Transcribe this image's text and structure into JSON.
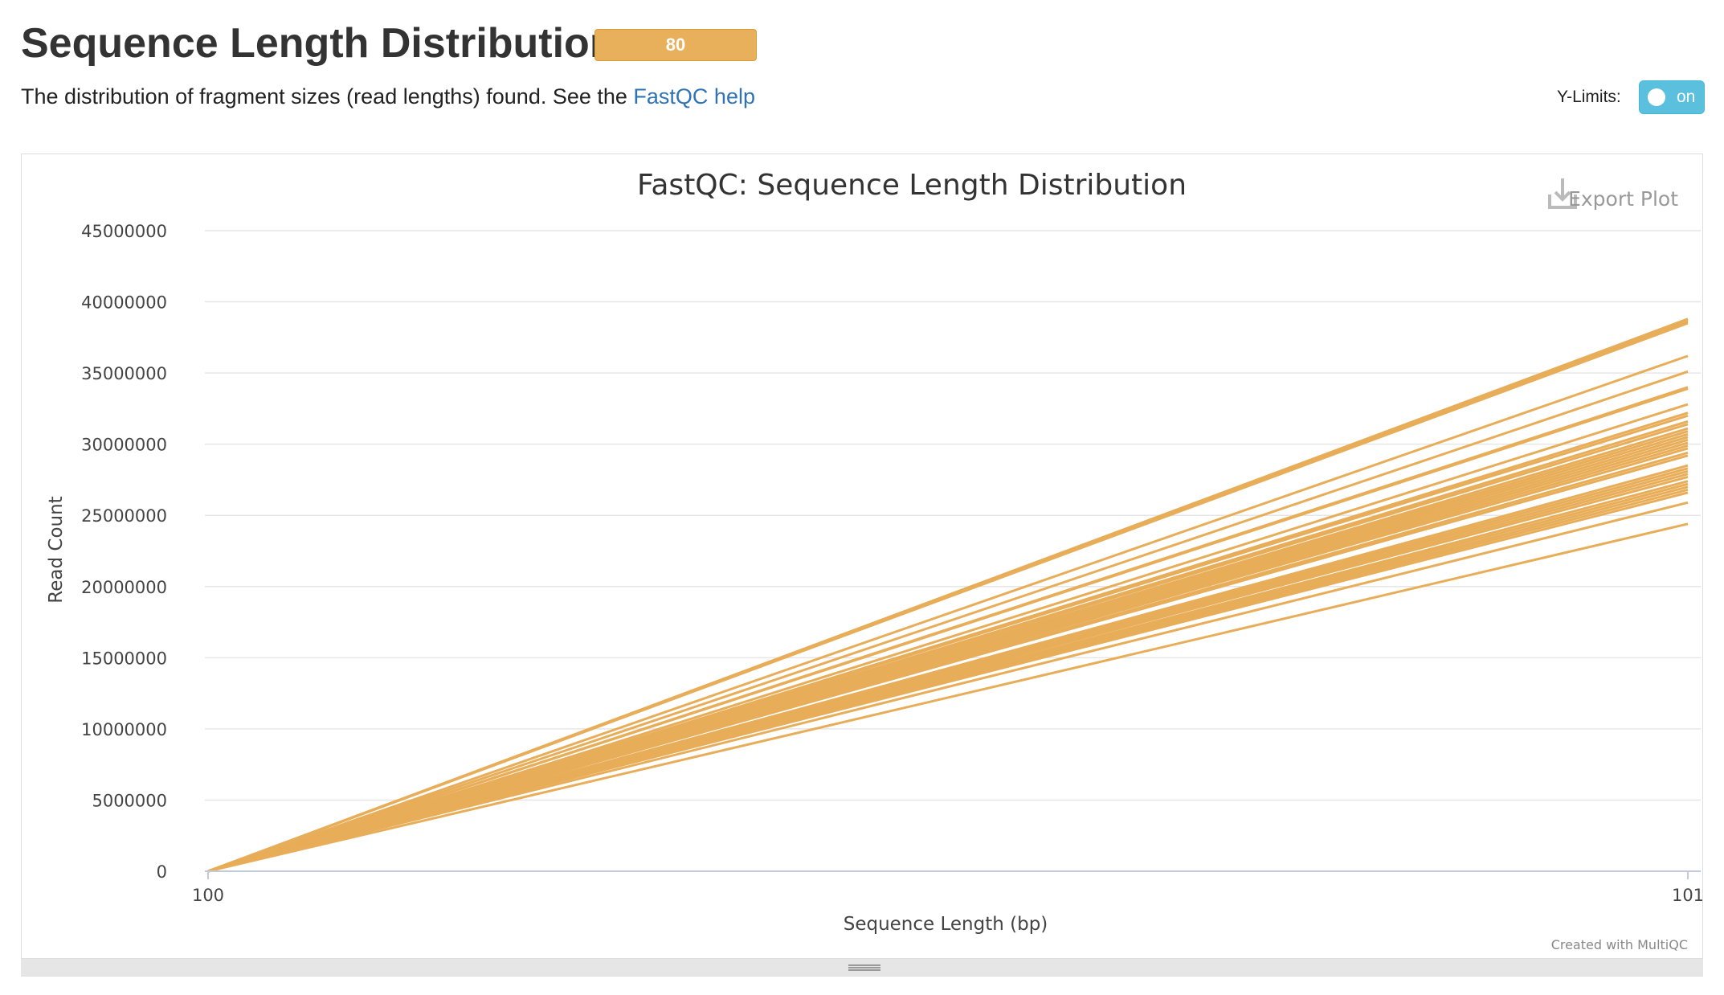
{
  "section": {
    "title": "Sequence Length Distribution",
    "badge": "80",
    "description_prefix": "The distribution of fragment sizes (read lengths) found. See the ",
    "description_link": "FastQC help"
  },
  "controls": {
    "ylimits_label": "Y-Limits:",
    "ylimits_toggle": "on"
  },
  "plot": {
    "export_label": "Export Plot",
    "credits": "Created with MultiQC"
  },
  "colors": {
    "series": "#e8ad58",
    "badge": "#e8b05b",
    "toggle": "#5bc0de",
    "link": "#2f73b5"
  },
  "chart_data": {
    "type": "line",
    "title": "FastQC: Sequence Length Distribution",
    "xlabel": "Sequence Length (bp)",
    "ylabel": "Read Count",
    "x": [
      100,
      101
    ],
    "x_ticks": [
      "100",
      "101"
    ],
    "y_ticks": [
      "0",
      "5000000",
      "10000000",
      "15000000",
      "20000000",
      "25000000",
      "30000000",
      "35000000",
      "40000000",
      "45000000"
    ],
    "ylim": [
      0,
      45000000
    ],
    "grid": true,
    "legend": "none",
    "series_color": "#e8ad58",
    "series": [
      {
        "values": [
          0,
          38800000
        ]
      },
      {
        "values": [
          0,
          38700000
        ]
      },
      {
        "values": [
          0,
          38600000
        ]
      },
      {
        "values": [
          0,
          38500000
        ]
      },
      {
        "values": [
          0,
          36200000
        ]
      },
      {
        "values": [
          0,
          35100000
        ]
      },
      {
        "values": [
          0,
          34000000
        ]
      },
      {
        "values": [
          0,
          33900000
        ]
      },
      {
        "values": [
          0,
          32800000
        ]
      },
      {
        "values": [
          0,
          32200000
        ]
      },
      {
        "values": [
          0,
          32000000
        ]
      },
      {
        "values": [
          0,
          31600000
        ]
      },
      {
        "values": [
          0,
          31400000
        ]
      },
      {
        "values": [
          0,
          31100000
        ]
      },
      {
        "values": [
          0,
          30900000
        ]
      },
      {
        "values": [
          0,
          30700000
        ]
      },
      {
        "values": [
          0,
          30500000
        ]
      },
      {
        "values": [
          0,
          30300000
        ]
      },
      {
        "values": [
          0,
          30100000
        ]
      },
      {
        "values": [
          0,
          29900000
        ]
      },
      {
        "values": [
          0,
          29700000
        ]
      },
      {
        "values": [
          0,
          29400000
        ]
      },
      {
        "values": [
          0,
          29200000
        ]
      },
      {
        "values": [
          0,
          28500000
        ]
      },
      {
        "values": [
          0,
          28300000
        ]
      },
      {
        "values": [
          0,
          28100000
        ]
      },
      {
        "values": [
          0,
          27900000
        ]
      },
      {
        "values": [
          0,
          27700000
        ]
      },
      {
        "values": [
          0,
          27400000
        ]
      },
      {
        "values": [
          0,
          27200000
        ]
      },
      {
        "values": [
          0,
          27000000
        ]
      },
      {
        "values": [
          0,
          26800000
        ]
      },
      {
        "values": [
          0,
          26600000
        ]
      },
      {
        "values": [
          0,
          25900000
        ]
      },
      {
        "values": [
          0,
          24400000
        ]
      }
    ]
  }
}
